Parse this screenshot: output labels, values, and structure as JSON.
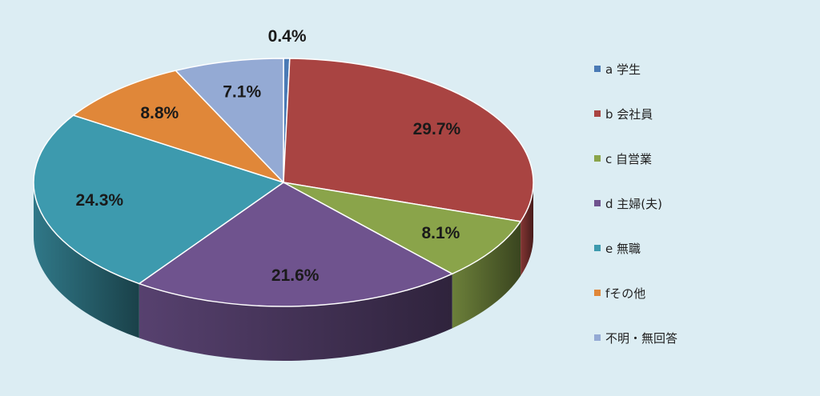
{
  "chart_data": {
    "type": "pie",
    "style": "3d",
    "slices": [
      {
        "name": "a 学生",
        "value": 0.4,
        "label": "0.4%",
        "color": "#4a7ab5"
      },
      {
        "name": "b 会社員",
        "value": 29.7,
        "label": "29.7%",
        "color": "#a94442"
      },
      {
        "name": "c 自営業",
        "value": 8.1,
        "label": "8.1%",
        "color": "#8aa44a"
      },
      {
        "name": "d 主婦(夫)",
        "value": 21.6,
        "label": "21.6%",
        "color": "#6f538e"
      },
      {
        "name": "e 無職",
        "value": 24.3,
        "label": "24.3%",
        "color": "#3d9aae"
      },
      {
        "name": "fその他",
        "value": 8.8,
        "label": "8.8%",
        "color": "#e08739"
      },
      {
        "name": "不明・無回答",
        "value": 7.1,
        "label": "7.1%",
        "color": "#94aad4"
      }
    ],
    "legend_position": "right"
  }
}
